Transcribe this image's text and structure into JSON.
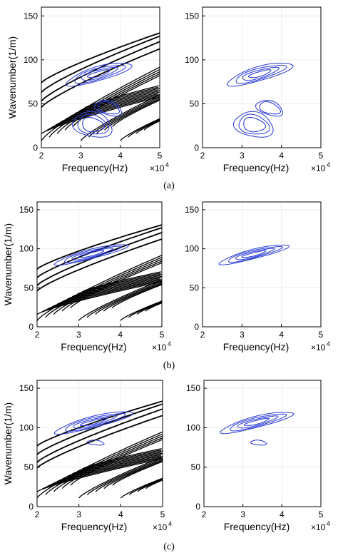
{
  "figure": {
    "panel_labels": [
      "(a)",
      "(b)",
      "(c)"
    ]
  },
  "colors": {
    "curve": "#000000",
    "contour": "#2b3cd6",
    "contour_core": "#1f2fd8",
    "axis": "#000000",
    "grid": "#e8e8e8"
  },
  "chart_data": [
    {
      "id": "a-left",
      "type": "line",
      "panel": "(a)",
      "xlabel": "Frequency(Hz)",
      "ylabel": "Wavenumber(1/m)",
      "xexp": "×10",
      "xlim": [
        2,
        5
      ],
      "ylim": [
        0,
        160
      ],
      "xticks": [
        "2",
        "3",
        "4",
        "5"
      ],
      "yticks": [
        "0",
        "50",
        "100",
        "150"
      ],
      "dispersion_curves": true,
      "contours": true
    },
    {
      "id": "a-right",
      "type": "line",
      "panel": "(a)",
      "xlabel": "Frequency(Hz)",
      "ylabel": "",
      "xexp": "×10",
      "xlim": [
        2,
        5
      ],
      "ylim": [
        0,
        160
      ],
      "xticks": [
        "2",
        "3",
        "4",
        "5"
      ],
      "yticks": [
        "0",
        "50",
        "100",
        "150"
      ],
      "dispersion_curves": false,
      "contours": true
    },
    {
      "id": "b-left",
      "type": "line",
      "panel": "(b)",
      "xlabel": "Frequency(Hz)",
      "ylabel": "Wavenumber(1/m)",
      "xexp": "×10",
      "xlim": [
        2,
        5
      ],
      "ylim": [
        0,
        160
      ],
      "xticks": [
        "2",
        "3",
        "4",
        "5"
      ],
      "yticks": [
        "0",
        "50",
        "100",
        "150"
      ],
      "dispersion_curves": true,
      "contours": true
    },
    {
      "id": "b-right",
      "type": "line",
      "panel": "(b)",
      "xlabel": "Frequency(Hz)",
      "ylabel": "",
      "xexp": "×10",
      "xlim": [
        2,
        5
      ],
      "ylim": [
        0,
        160
      ],
      "xticks": [
        "2",
        "3",
        "4",
        "5"
      ],
      "yticks": [
        "0",
        "50",
        "100",
        "150"
      ],
      "dispersion_curves": false,
      "contours": true
    },
    {
      "id": "c-left",
      "type": "line",
      "panel": "(c)",
      "xlabel": "Frequency(Hz)",
      "ylabel": "Wavenumber(1/m)",
      "xexp": "×10",
      "xlim": [
        2,
        5
      ],
      "ylim": [
        0,
        160
      ],
      "xticks": [
        "2",
        "3",
        "4",
        "5"
      ],
      "yticks": [
        "0",
        "50",
        "100",
        "150"
      ],
      "dispersion_curves": true,
      "contours": true
    },
    {
      "id": "c-right",
      "type": "line",
      "panel": "(c)",
      "xlabel": "Frequency(Hz)",
      "ylabel": "",
      "xexp": "×10",
      "xlim": [
        2,
        5
      ],
      "ylim": [
        0,
        160
      ],
      "xticks": [
        "2",
        "3",
        "4",
        "5"
      ],
      "yticks": [
        "0",
        "50",
        "100",
        "150"
      ],
      "dispersion_curves": false,
      "contours": true
    }
  ]
}
